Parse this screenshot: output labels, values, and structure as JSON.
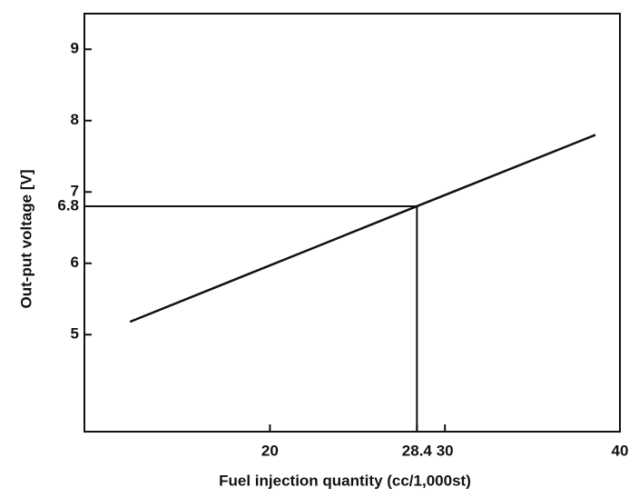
{
  "chart_data": {
    "type": "line",
    "xlabel": "Fuel injection quantity (cc/1,000st)",
    "ylabel": "Out-put voltage [V]",
    "x": [
      12,
      28.4,
      38.6
    ],
    "series": [
      {
        "color": "#111111",
        "values": [
          5.18,
          6.8,
          7.8
        ]
      }
    ],
    "xlim": [
      9.4,
      40
    ],
    "xticks": [
      20,
      28.4,
      30,
      40
    ],
    "ylim": [
      3.64,
      9.5
    ],
    "yticks": [
      5,
      6,
      6.8,
      7,
      8,
      9
    ],
    "grid": false
  }
}
